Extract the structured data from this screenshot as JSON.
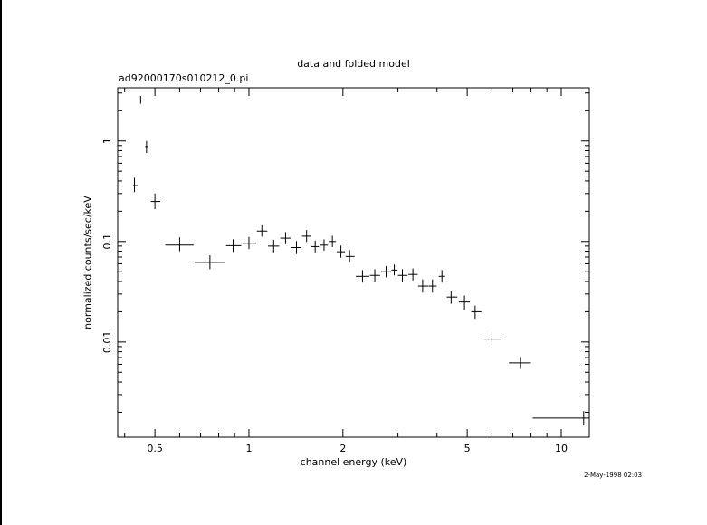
{
  "chart_data": {
    "type": "scatter",
    "title": "data and folded model",
    "subtitle": "ad92000170s010212_0.pi",
    "xlabel": "channel energy (keV)",
    "ylabel": "normalized counts/sec/keV",
    "xscale": "log",
    "yscale": "log",
    "xlim": [
      0.38,
      12.3
    ],
    "ylim": [
      0.00113,
      3.38
    ],
    "xticks": [
      {
        "value": 0.5,
        "label": "0.5"
      },
      {
        "value": 1,
        "label": "1"
      },
      {
        "value": 2,
        "label": "2"
      },
      {
        "value": 5,
        "label": "5"
      },
      {
        "value": 10,
        "label": "10"
      }
    ],
    "yticks": [
      {
        "value": 0.01,
        "label": "0.01"
      },
      {
        "value": 0.1,
        "label": "0.1"
      },
      {
        "value": 1,
        "label": "1"
      }
    ],
    "series": [
      {
        "points": [
          {
            "x": 0.43,
            "xlo": 0.425,
            "xhi": 0.44,
            "y": 0.36,
            "ylo": 0.31,
            "yhi": 0.43
          },
          {
            "x": 0.45,
            "xlo": 0.448,
            "xhi": 0.454,
            "y": 2.55,
            "ylo": 2.35,
            "yhi": 2.8
          },
          {
            "x": 0.47,
            "xlo": 0.465,
            "xhi": 0.475,
            "y": 0.88,
            "ylo": 0.76,
            "yhi": 1.0
          },
          {
            "x": 0.5,
            "xlo": 0.485,
            "xhi": 0.52,
            "y": 0.25,
            "ylo": 0.21,
            "yhi": 0.3
          },
          {
            "x": 0.6,
            "xlo": 0.54,
            "xhi": 0.665,
            "y": 0.092,
            "ylo": 0.08,
            "yhi": 0.11
          },
          {
            "x": 0.75,
            "xlo": 0.67,
            "xhi": 0.835,
            "y": 0.062,
            "ylo": 0.053,
            "yhi": 0.073
          },
          {
            "x": 0.89,
            "xlo": 0.845,
            "xhi": 0.945,
            "y": 0.091,
            "ylo": 0.079,
            "yhi": 0.105
          },
          {
            "x": 1.0,
            "xlo": 0.955,
            "xhi": 1.055,
            "y": 0.096,
            "ylo": 0.084,
            "yhi": 0.111
          },
          {
            "x": 1.1,
            "xlo": 1.06,
            "xhi": 1.145,
            "y": 0.127,
            "ylo": 0.112,
            "yhi": 0.145
          },
          {
            "x": 1.2,
            "xlo": 1.15,
            "xhi": 1.25,
            "y": 0.09,
            "ylo": 0.078,
            "yhi": 0.104
          },
          {
            "x": 1.31,
            "xlo": 1.26,
            "xhi": 1.36,
            "y": 0.108,
            "ylo": 0.094,
            "yhi": 0.124
          },
          {
            "x": 1.42,
            "xlo": 1.37,
            "xhi": 1.47,
            "y": 0.087,
            "ylo": 0.075,
            "yhi": 0.101
          },
          {
            "x": 1.53,
            "xlo": 1.48,
            "xhi": 1.58,
            "y": 0.113,
            "ylo": 0.099,
            "yhi": 0.13
          },
          {
            "x": 1.63,
            "xlo": 1.585,
            "xhi": 1.675,
            "y": 0.089,
            "ylo": 0.078,
            "yhi": 0.102
          },
          {
            "x": 1.74,
            "xlo": 1.685,
            "xhi": 1.79,
            "y": 0.092,
            "ylo": 0.081,
            "yhi": 0.105
          },
          {
            "x": 1.85,
            "xlo": 1.8,
            "xhi": 1.9,
            "y": 0.1,
            "ylo": 0.088,
            "yhi": 0.114
          },
          {
            "x": 1.97,
            "xlo": 1.91,
            "xhi": 2.03,
            "y": 0.079,
            "ylo": 0.069,
            "yhi": 0.091
          },
          {
            "x": 2.1,
            "xlo": 2.04,
            "xhi": 2.18,
            "y": 0.071,
            "ylo": 0.062,
            "yhi": 0.082
          },
          {
            "x": 2.31,
            "xlo": 2.2,
            "xhi": 2.43,
            "y": 0.045,
            "ylo": 0.039,
            "yhi": 0.052
          },
          {
            "x": 2.53,
            "xlo": 2.44,
            "xhi": 2.63,
            "y": 0.046,
            "ylo": 0.04,
            "yhi": 0.053
          },
          {
            "x": 2.75,
            "xlo": 2.65,
            "xhi": 2.85,
            "y": 0.05,
            "ylo": 0.044,
            "yhi": 0.057
          },
          {
            "x": 2.92,
            "xlo": 2.86,
            "xhi": 2.99,
            "y": 0.052,
            "ylo": 0.046,
            "yhi": 0.059
          },
          {
            "x": 3.1,
            "xlo": 3.0,
            "xhi": 3.22,
            "y": 0.046,
            "ylo": 0.04,
            "yhi": 0.053
          },
          {
            "x": 3.35,
            "xlo": 3.24,
            "xhi": 3.47,
            "y": 0.047,
            "ylo": 0.041,
            "yhi": 0.054
          },
          {
            "x": 3.6,
            "xlo": 3.48,
            "xhi": 3.75,
            "y": 0.036,
            "ylo": 0.031,
            "yhi": 0.042
          },
          {
            "x": 3.87,
            "xlo": 3.76,
            "xhi": 3.99,
            "y": 0.036,
            "ylo": 0.031,
            "yhi": 0.042
          },
          {
            "x": 4.15,
            "xlo": 4.05,
            "xhi": 4.25,
            "y": 0.045,
            "ylo": 0.039,
            "yhi": 0.052
          },
          {
            "x": 4.44,
            "xlo": 4.3,
            "xhi": 4.65,
            "y": 0.028,
            "ylo": 0.024,
            "yhi": 0.032
          },
          {
            "x": 4.9,
            "xlo": 4.7,
            "xhi": 5.1,
            "y": 0.025,
            "ylo": 0.021,
            "yhi": 0.029
          },
          {
            "x": 5.3,
            "xlo": 5.15,
            "xhi": 5.55,
            "y": 0.02,
            "ylo": 0.017,
            "yhi": 0.023
          },
          {
            "x": 6.0,
            "xlo": 5.65,
            "xhi": 6.4,
            "y": 0.0107,
            "ylo": 0.0093,
            "yhi": 0.0123
          },
          {
            "x": 7.4,
            "xlo": 6.8,
            "xhi": 8.0,
            "y": 0.0062,
            "ylo": 0.0054,
            "yhi": 0.0071
          },
          {
            "x": 11.8,
            "xlo": 8.1,
            "xhi": 12.3,
            "y": 0.00175,
            "ylo": 0.00148,
            "yhi": 0.00205
          }
        ]
      }
    ],
    "timestamp": "2-May-1998 02:03",
    "grid": false
  }
}
